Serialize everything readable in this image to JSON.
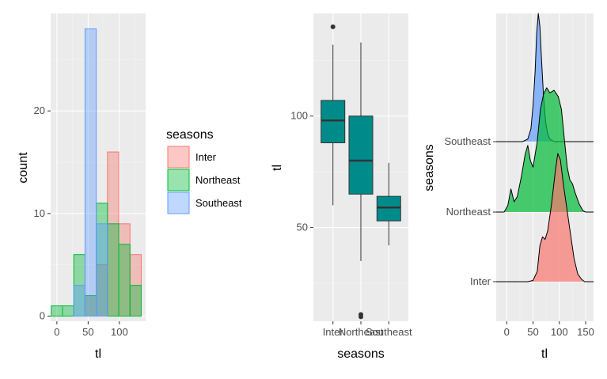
{
  "colors": {
    "panel_bg": "#ebebeb",
    "grid_major": "#ffffff",
    "grid_minor": "#f4f4f4",
    "Inter": "#f8766d",
    "Northeast": "#00ba38",
    "Southeast": "#619cff",
    "box_fill": "#008b8b"
  },
  "chart_data": [
    {
      "type": "histogram",
      "xlabel": "tl",
      "ylabel": "count",
      "xlim": [
        -10,
        142
      ],
      "ylim": [
        -0.5,
        29.5
      ],
      "x_ticks": [
        0,
        50,
        100
      ],
      "y_ticks": [
        0,
        10,
        20
      ],
      "bin_width": 18,
      "bin_starts": [
        -9,
        9,
        27,
        45,
        63,
        81,
        99,
        117
      ],
      "legend": {
        "title": "seasons",
        "position": "right",
        "entries": [
          "Inter",
          "Northeast",
          "Southeast"
        ]
      },
      "series": [
        {
          "name": "Inter",
          "values": [
            0,
            0,
            0,
            2,
            5,
            16,
            9,
            6
          ]
        },
        {
          "name": "Northeast",
          "values": [
            1,
            1,
            6,
            2,
            11,
            9,
            7,
            3
          ]
        },
        {
          "name": "Southeast",
          "values": [
            0,
            0,
            3,
            28,
            9,
            0,
            0,
            0
          ]
        }
      ]
    },
    {
      "type": "boxplot",
      "xlabel": "seasons",
      "ylabel": "tl",
      "categories": [
        "Inter",
        "Northeast",
        "Southeast"
      ],
      "ylim": [
        8,
        146
      ],
      "y_ticks": [
        50,
        100
      ],
      "boxes": [
        {
          "category": "Inter",
          "min": 60,
          "q1": 88,
          "median": 98,
          "q3": 107,
          "max": 132,
          "outliers": [
            140
          ]
        },
        {
          "category": "Northeast",
          "min": 35,
          "q1": 65,
          "median": 80,
          "q3": 100,
          "max": 133,
          "outliers": [
            10,
            11
          ]
        },
        {
          "category": "Southeast",
          "min": 42,
          "q1": 53,
          "median": 59,
          "q3": 64,
          "max": 79,
          "outliers": []
        }
      ]
    },
    {
      "type": "ridgeline",
      "xlabel": "tl",
      "ylabel": "seasons",
      "categories": [
        "Inter",
        "Northeast",
        "Southeast"
      ],
      "xlim": [
        -20,
        165
      ],
      "x_ticks": [
        0,
        50,
        100,
        150
      ],
      "series": [
        {
          "name": "Inter",
          "x": [
            -20,
            40,
            50,
            58,
            63,
            68,
            73,
            78,
            85,
            92,
            97,
            102,
            108,
            115,
            122,
            128,
            135,
            142,
            148,
            165
          ],
          "density": [
            0,
            0,
            0.01,
            0.08,
            0.28,
            0.35,
            0.33,
            0.4,
            0.6,
            0.85,
            1.0,
            0.95,
            0.75,
            0.55,
            0.35,
            0.18,
            0.06,
            0.02,
            0,
            0
          ]
        },
        {
          "name": "Northeast",
          "x": [
            -20,
            -5,
            2,
            8,
            14,
            20,
            28,
            35,
            40,
            45,
            50,
            58,
            64,
            70,
            76,
            82,
            90,
            98,
            104,
            110,
            115,
            120,
            125,
            130,
            138,
            145,
            150,
            165
          ],
          "density": [
            0,
            0,
            0.05,
            0.18,
            0.08,
            0.12,
            0.28,
            0.45,
            0.52,
            0.4,
            0.35,
            0.55,
            0.8,
            0.92,
            0.97,
            0.93,
            0.95,
            0.9,
            0.8,
            0.55,
            0.35,
            0.25,
            0.22,
            0.15,
            0.06,
            0.01,
            0,
            0
          ]
        },
        {
          "name": "Southeast",
          "x": [
            -20,
            30,
            40,
            46,
            50,
            54,
            57,
            60,
            63,
            66,
            70,
            74,
            78,
            82,
            90,
            165
          ],
          "density": [
            0,
            0,
            0.02,
            0.1,
            0.28,
            0.55,
            0.85,
            1.0,
            0.9,
            0.65,
            0.35,
            0.15,
            0.06,
            0.02,
            0,
            0
          ]
        }
      ]
    }
  ]
}
